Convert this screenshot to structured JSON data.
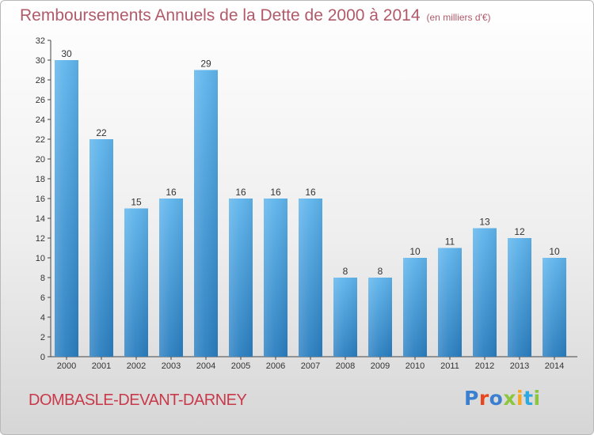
{
  "title": "Remboursements Annuels de la Dette de 2000 à 2014",
  "unit_label": "(en milliers d'€)",
  "commune": "DOMBASLE-DEVANT-DARNEY",
  "logo": {
    "text": "Proxiti",
    "letter_colors": [
      "#3a7fd0",
      "#e8461e",
      "#3a7fd0",
      "#8cc63f",
      "#f5a623",
      "#2fa8e0",
      "#8cc63f"
    ]
  },
  "colors": {
    "bar_top": "#5eb4ec",
    "bar_bottom": "#2a7ec0",
    "title": "#b05a6a",
    "commune": "#c9394a"
  },
  "chart_data": {
    "type": "bar",
    "categories": [
      "2000",
      "2001",
      "2002",
      "2003",
      "2004",
      "2005",
      "2006",
      "2007",
      "2008",
      "2009",
      "2010",
      "2011",
      "2012",
      "2013",
      "2014"
    ],
    "values": [
      30,
      22,
      15,
      16,
      29,
      16,
      16,
      16,
      8,
      8,
      10,
      11,
      13,
      12,
      10
    ],
    "ylim": [
      0,
      32
    ],
    "yticks": [
      0,
      2,
      4,
      6,
      8,
      10,
      12,
      14,
      16,
      18,
      20,
      22,
      24,
      26,
      28,
      30,
      32
    ],
    "grid": false
  }
}
